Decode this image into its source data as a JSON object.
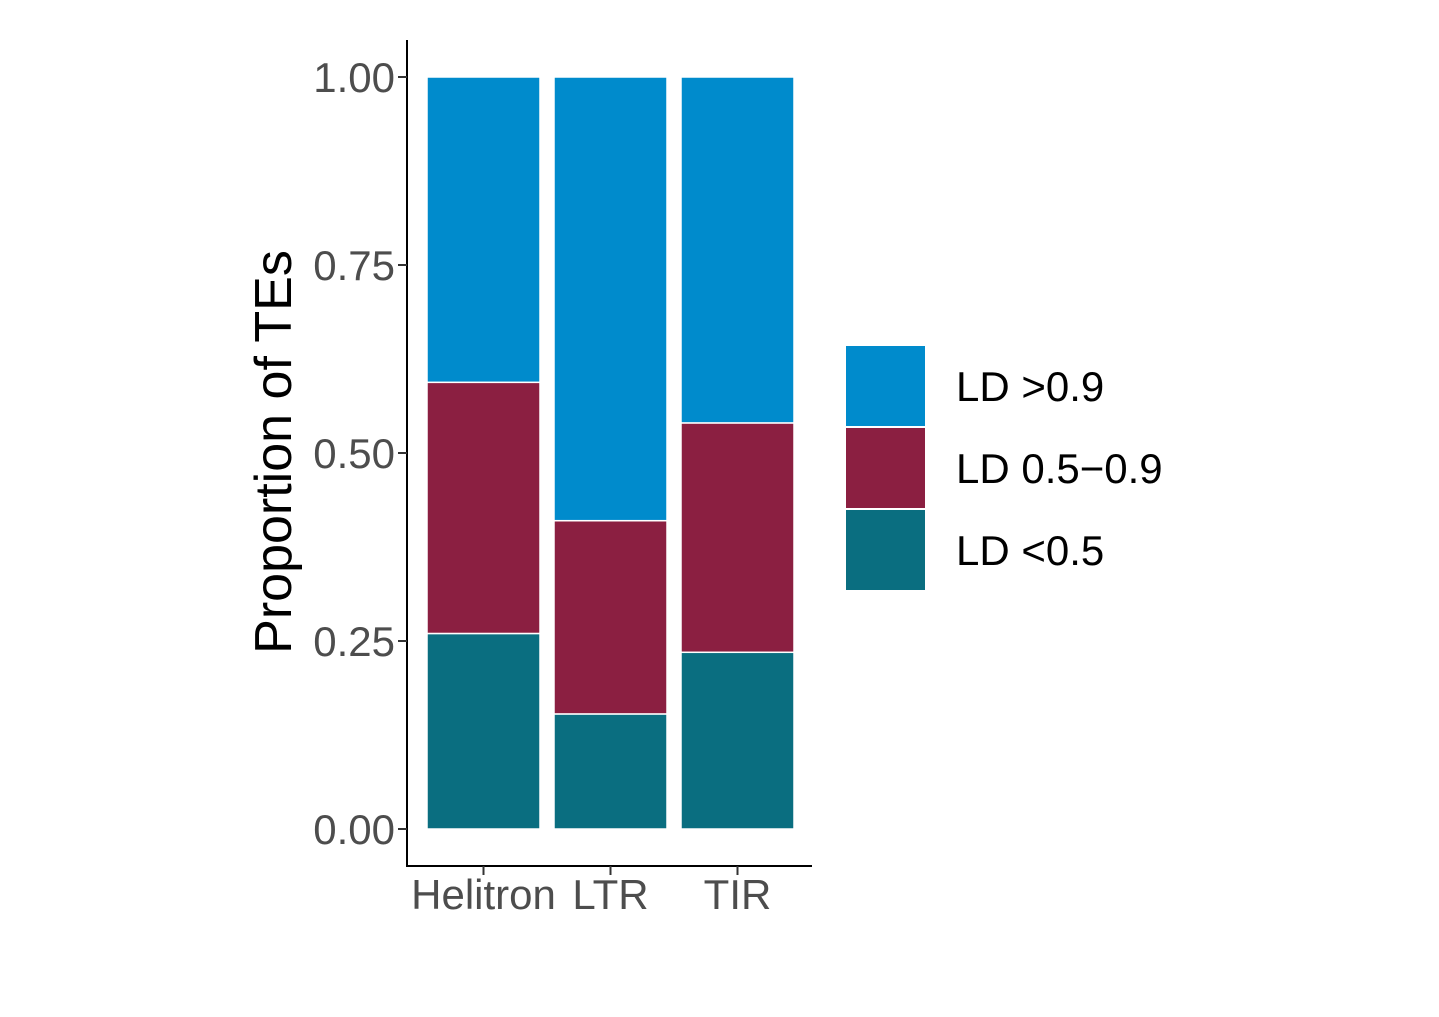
{
  "chart_data": {
    "type": "bar",
    "stacked": true,
    "categories": [
      "Helitron",
      "LTR",
      "TIR"
    ],
    "series": [
      {
        "name": "LD <0.5",
        "color": "#0a6e80",
        "values": [
          0.26,
          0.153,
          0.235
        ]
      },
      {
        "name": "LD 0.5−0.9",
        "color": "#8b1f41",
        "values": [
          0.334,
          0.257,
          0.305
        ]
      },
      {
        "name": "LD >0.9",
        "color": "#008bcc",
        "values": [
          0.406,
          0.59,
          0.46
        ]
      }
    ],
    "legend_order": [
      "LD >0.9",
      "LD 0.5−0.9",
      "LD <0.5"
    ],
    "ylabel": "Proportion of TEs",
    "xlabel": "",
    "ylim": [
      0,
      1
    ],
    "yticks": [
      "0.00",
      "0.25",
      "0.50",
      "0.75",
      "1.00"
    ],
    "ytick_values": [
      0,
      0.25,
      0.5,
      0.75,
      1.0
    ],
    "grid": false,
    "legend_position": "right"
  }
}
